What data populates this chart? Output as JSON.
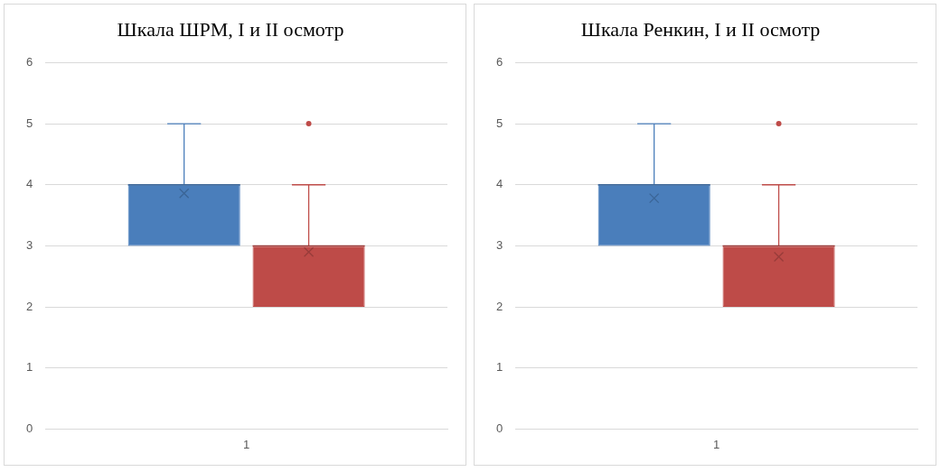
{
  "chart_data": [
    {
      "type": "box",
      "title": "Шкала ШРМ, I и II осмотр",
      "categories": [
        "1"
      ],
      "ylim": [
        0,
        6
      ],
      "yticks": [
        0,
        1,
        2,
        3,
        4,
        5,
        6
      ],
      "grid": "y",
      "legend": false,
      "series": [
        {
          "color": "#4a7ebb",
          "boxes": [
            {
              "low": 3,
              "q1": 3,
              "median": 4,
              "q3": 4,
              "high": 5,
              "mean": 3.86
            }
          ]
        },
        {
          "color": "#be4b48",
          "boxes": [
            {
              "low": 2,
              "q1": 2,
              "median": 3,
              "q3": 3,
              "high": 4,
              "mean": 2.9,
              "outliers": [
                5
              ]
            }
          ]
        }
      ]
    },
    {
      "type": "box",
      "title": "Шкала Ренкин, I и II осмотр",
      "categories": [
        "1"
      ],
      "ylim": [
        0,
        6
      ],
      "yticks": [
        0,
        1,
        2,
        3,
        4,
        5,
        6
      ],
      "grid": "y",
      "legend": false,
      "series": [
        {
          "color": "#4a7ebb",
          "boxes": [
            {
              "low": 3,
              "q1": 3,
              "median": 4,
              "q3": 4,
              "high": 5,
              "mean": 3.78
            }
          ]
        },
        {
          "color": "#be4b48",
          "boxes": [
            {
              "low": 2,
              "q1": 2,
              "median": 3,
              "q3": 3,
              "high": 4,
              "mean": 2.82,
              "outliers": [
                5
              ]
            }
          ]
        }
      ]
    }
  ]
}
